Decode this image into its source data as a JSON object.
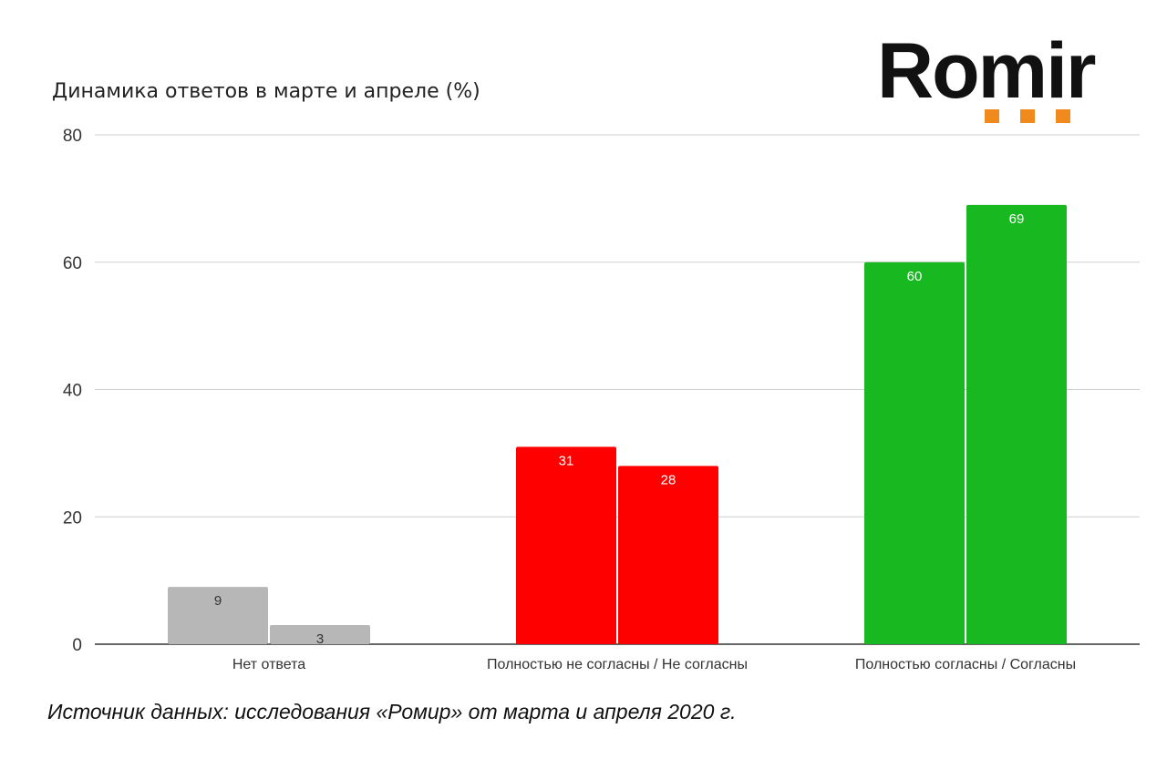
{
  "logo": {
    "text": "Romir",
    "dot_color": "#f08a1c"
  },
  "source_note": "Источник данных: исследования «Ромир» от марта и апреля 2020 г.",
  "chart_data": {
    "type": "bar",
    "title": "Динамика ответов в марте и апреле (%)",
    "xlabel": "",
    "ylabel": "",
    "ylim": [
      0,
      80
    ],
    "yticks": [
      0,
      20,
      40,
      60,
      80
    ],
    "grid": true,
    "categories": [
      "Нет ответа",
      "Полностью не согласны / Не согласны",
      "Полностью согласны / Согласны"
    ],
    "series": [
      {
        "values": [
          9,
          31,
          60
        ]
      },
      {
        "values": [
          3,
          28,
          69
        ]
      }
    ],
    "category_colors": [
      "#b7b7b7",
      "#ff0000",
      "#18b820"
    ],
    "label_colors": [
      "#333333",
      "#ffffff",
      "#ffffff"
    ]
  }
}
